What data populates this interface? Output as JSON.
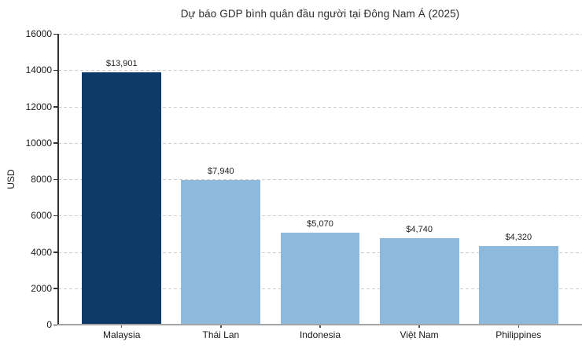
{
  "chart_data": {
    "type": "bar",
    "title": "Dự báo GDP bình quân đầu người tại Đông Nam Á (2025)",
    "xlabel": "",
    "ylabel": "USD",
    "categories": [
      "Malaysia",
      "Thái Lan",
      "Indonesia",
      "Việt Nam",
      "Philippines"
    ],
    "values": [
      13901,
      7940,
      5070,
      4740,
      4320
    ],
    "value_labels": [
      "$13,901",
      "$7,940",
      "$5,070",
      "$4,740",
      "$4,320"
    ],
    "bar_colors": [
      "#0d3a67",
      "#8db9dc",
      "#8db9dc",
      "#8db9dc",
      "#8db9dc"
    ],
    "ylim": [
      0,
      16000
    ],
    "yticks": [
      0,
      2000,
      4000,
      6000,
      8000,
      10000,
      12000,
      14000,
      16000
    ],
    "grid": "horizontal-dashed",
    "legend": "none",
    "colors": {
      "highlight_bar": "#0d3a67",
      "base_bar": "#8db9dc",
      "gridline": "#cdcdcd",
      "bottom_axis": "#a3a3a3",
      "left_spine": "#333333",
      "text": "#1f1f1f"
    }
  }
}
